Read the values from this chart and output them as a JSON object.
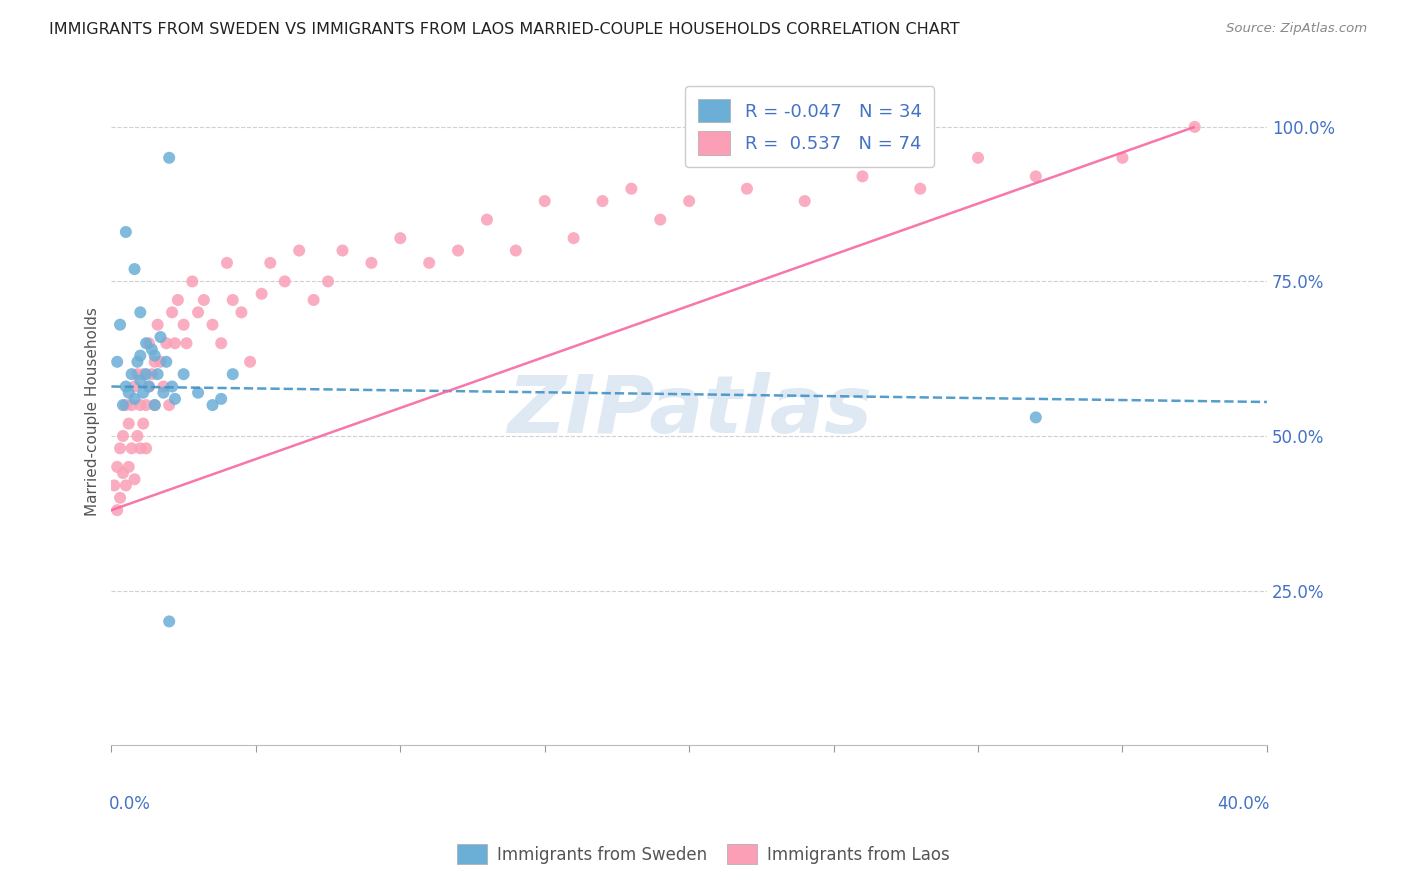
{
  "title": "IMMIGRANTS FROM SWEDEN VS IMMIGRANTS FROM LAOS MARRIED-COUPLE HOUSEHOLDS CORRELATION CHART",
  "source": "Source: ZipAtlas.com",
  "ylabel": "Married-couple Households",
  "xlim": [
    0.0,
    0.4
  ],
  "ylim": [
    0.0,
    1.08
  ],
  "sweden_color": "#6baed6",
  "laos_color": "#fa9fb5",
  "sweden_line_color": "#4292c6",
  "laos_line_color": "#f768a1",
  "sweden_R": -0.047,
  "sweden_N": 34,
  "laos_R": 0.537,
  "laos_N": 74,
  "watermark": "ZIPatlas",
  "background_color": "#ffffff",
  "grid_color": "#d0d0d0",
  "axis_label_color": "#4472c4",
  "legend_color": "#4472c4",
  "sweden_x": [
    0.002,
    0.003,
    0.004,
    0.005,
    0.006,
    0.007,
    0.008,
    0.009,
    0.01,
    0.01,
    0.011,
    0.012,
    0.013,
    0.014,
    0.015,
    0.016,
    0.017,
    0.018,
    0.019,
    0.02,
    0.021,
    0.022,
    0.025,
    0.03,
    0.035,
    0.038,
    0.042,
    0.32,
    0.005,
    0.008,
    0.01,
    0.012,
    0.015,
    0.02
  ],
  "sweden_y": [
    0.62,
    0.68,
    0.55,
    0.58,
    0.57,
    0.6,
    0.56,
    0.62,
    0.59,
    0.63,
    0.57,
    0.6,
    0.58,
    0.64,
    0.55,
    0.6,
    0.66,
    0.57,
    0.62,
    0.95,
    0.58,
    0.56,
    0.6,
    0.57,
    0.55,
    0.56,
    0.6,
    0.53,
    0.83,
    0.77,
    0.7,
    0.65,
    0.63,
    0.2
  ],
  "laos_x": [
    0.001,
    0.002,
    0.002,
    0.003,
    0.003,
    0.004,
    0.004,
    0.005,
    0.005,
    0.006,
    0.006,
    0.007,
    0.007,
    0.008,
    0.008,
    0.009,
    0.009,
    0.01,
    0.01,
    0.011,
    0.011,
    0.012,
    0.012,
    0.013,
    0.013,
    0.014,
    0.015,
    0.015,
    0.016,
    0.017,
    0.018,
    0.019,
    0.02,
    0.021,
    0.022,
    0.023,
    0.025,
    0.026,
    0.028,
    0.03,
    0.032,
    0.035,
    0.038,
    0.04,
    0.042,
    0.045,
    0.048,
    0.052,
    0.055,
    0.06,
    0.065,
    0.07,
    0.075,
    0.08,
    0.09,
    0.1,
    0.11,
    0.12,
    0.13,
    0.14,
    0.15,
    0.16,
    0.17,
    0.18,
    0.19,
    0.2,
    0.22,
    0.24,
    0.26,
    0.28,
    0.3,
    0.32,
    0.35,
    0.375
  ],
  "laos_y": [
    0.42,
    0.38,
    0.45,
    0.4,
    0.48,
    0.44,
    0.5,
    0.42,
    0.55,
    0.45,
    0.52,
    0.48,
    0.55,
    0.43,
    0.58,
    0.5,
    0.6,
    0.48,
    0.55,
    0.52,
    0.6,
    0.48,
    0.55,
    0.65,
    0.58,
    0.6,
    0.62,
    0.55,
    0.68,
    0.62,
    0.58,
    0.65,
    0.55,
    0.7,
    0.65,
    0.72,
    0.68,
    0.65,
    0.75,
    0.7,
    0.72,
    0.68,
    0.65,
    0.78,
    0.72,
    0.7,
    0.62,
    0.73,
    0.78,
    0.75,
    0.8,
    0.72,
    0.75,
    0.8,
    0.78,
    0.82,
    0.78,
    0.8,
    0.85,
    0.8,
    0.88,
    0.82,
    0.88,
    0.9,
    0.85,
    0.88,
    0.9,
    0.88,
    0.92,
    0.9,
    0.95,
    0.92,
    0.95,
    1.0
  ],
  "sweden_line_x0": 0.0,
  "sweden_line_y0": 0.58,
  "sweden_line_x1": 0.4,
  "sweden_line_y1": 0.555,
  "laos_line_x0": 0.0,
  "laos_line_y0": 0.38,
  "laos_line_x1": 0.375,
  "laos_line_y1": 1.0
}
